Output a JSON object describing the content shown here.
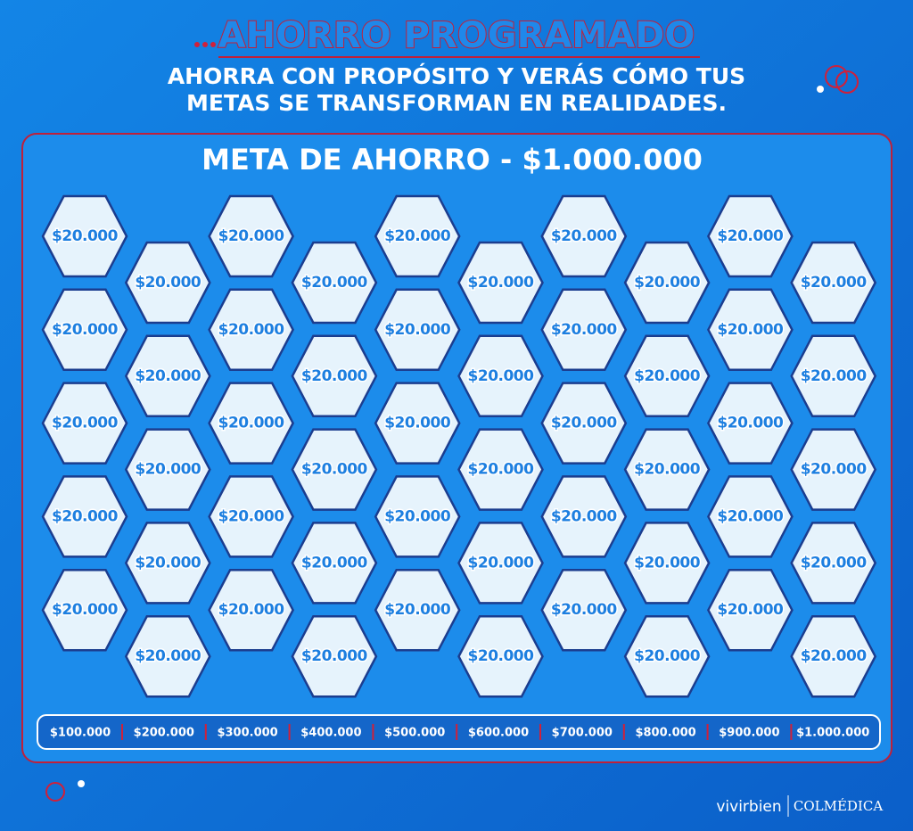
{
  "header": {
    "title": "AHORRO PROGRAMADO",
    "subtitle_lines": [
      "AHORRA CON PROPÓSITO Y VERÁS CÓMO TUS",
      "METAS SE TRANSFORMAN EN REALIDADES."
    ]
  },
  "panel": {
    "title": "META DE AHORRO - $1.000.000",
    "hexagons": [
      "$20.000",
      "$20.000",
      "$20.000",
      "$20.000",
      "$20.000",
      "$20.000",
      "$20.000",
      "$20.000",
      "$20.000",
      "$20.000",
      "$20.000",
      "$20.000",
      "$20.000",
      "$20.000",
      "$20.000",
      "$20.000",
      "$20.000",
      "$20.000",
      "$20.000",
      "$20.000",
      "$20.000",
      "$20.000",
      "$20.000",
      "$20.000",
      "$20.000",
      "$20.000",
      "$20.000",
      "$20.000",
      "$20.000",
      "$20.000",
      "$20.000",
      "$20.000",
      "$20.000",
      "$20.000",
      "$20.000",
      "$20.000",
      "$20.000",
      "$20.000",
      "$20.000",
      "$20.000",
      "$20.000",
      "$20.000",
      "$20.000",
      "$20.000",
      "$20.000",
      "$20.000",
      "$20.000",
      "$20.000",
      "$20.000",
      "$20.000"
    ],
    "milestones": [
      "$100.000",
      "$200.000",
      "$300.000",
      "$400.000",
      "$500.000",
      "$600.000",
      "$700.000",
      "$800.000",
      "$900.000",
      "$1.000.000"
    ]
  },
  "footer": {
    "brands": [
      "vivirbien",
      "COLMÉDICA"
    ]
  }
}
